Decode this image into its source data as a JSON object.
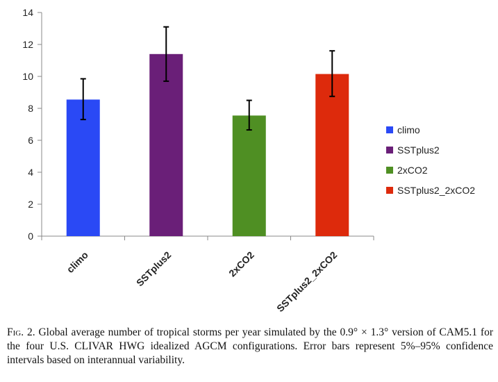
{
  "chart_data": {
    "type": "bar",
    "categories": [
      "climo",
      "SSTplus2",
      "2xCO2",
      "SSTplus2_2xCO2"
    ],
    "values": [
      8.55,
      11.4,
      7.55,
      10.15
    ],
    "error_low": [
      7.3,
      9.7,
      6.65,
      8.75
    ],
    "error_high": [
      9.85,
      13.1,
      8.5,
      11.6
    ],
    "colors": [
      "#2a49f5",
      "#6a1f78",
      "#4f8f23",
      "#dd2a0c"
    ],
    "ylim": [
      0,
      14
    ],
    "yticks": [
      "0",
      "2",
      "4",
      "6",
      "8",
      "10",
      "12",
      "14"
    ],
    "legend": [
      "climo",
      "SSTplus2",
      "2xCO2",
      "SSTplus2_2xCO2"
    ],
    "legend_position": "right",
    "grid": false
  },
  "caption": {
    "fig_label": "Fig. 2.",
    "text": " Global average number of tropical storms per year simulated by the 0.9° × 1.3° version of CAM5.1 for the four U.S. CLIVAR HWG idealized AGCM configurations. Error bars represent 5%–95% confidence intervals based on interannual variability."
  }
}
